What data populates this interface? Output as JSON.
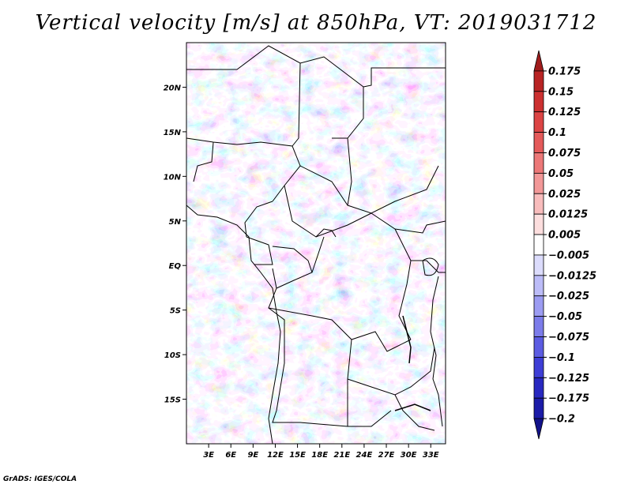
{
  "title": "Vertical velocity [m/s] at 850hPa, VT: 2019031712",
  "credit": "GrADS: IGES/COLA",
  "map": {
    "lon_range": [
      0,
      35
    ],
    "lat_range": [
      -20,
      25
    ],
    "lat_ticks": [
      {
        "value": 20,
        "label": "20N"
      },
      {
        "value": 15,
        "label": "15N"
      },
      {
        "value": 10,
        "label": "10N"
      },
      {
        "value": 5,
        "label": "5N"
      },
      {
        "value": 0,
        "label": "EQ"
      },
      {
        "value": -5,
        "label": "5S"
      },
      {
        "value": -10,
        "label": "10S"
      },
      {
        "value": -15,
        "label": "15S"
      }
    ],
    "lon_ticks": [
      {
        "value": 3,
        "label": "3E"
      },
      {
        "value": 6,
        "label": "6E"
      },
      {
        "value": 9,
        "label": "9E"
      },
      {
        "value": 12,
        "label": "12E"
      },
      {
        "value": 15,
        "label": "15E"
      },
      {
        "value": 18,
        "label": "18E"
      },
      {
        "value": 21,
        "label": "21E"
      },
      {
        "value": 24,
        "label": "24E"
      },
      {
        "value": 27,
        "label": "27E"
      },
      {
        "value": 30,
        "label": "30E"
      },
      {
        "value": 33,
        "label": "33E"
      }
    ]
  },
  "colorbar": {
    "levels": [
      "0.175",
      "0.15",
      "0.125",
      "0.1",
      "0.075",
      "0.05",
      "0.025",
      "0.0125",
      "0.005",
      "-0.005",
      "-0.0125",
      "-0.025",
      "-0.05",
      "-0.075",
      "-0.1",
      "-0.125",
      "-0.175",
      "-0.2"
    ],
    "colors": [
      "#a01c1c",
      "#b82424",
      "#cc3030",
      "#dc4444",
      "#e45a5a",
      "#ec7878",
      "#f29898",
      "#f8bcbc",
      "#fcdede",
      "#ffffff",
      "#dcdcfc",
      "#bcbcf8",
      "#9c9cf2",
      "#7c7cea",
      "#5c5ce2",
      "#3e3ed6",
      "#2828c0",
      "#1c1ca8",
      "#12128a"
    ]
  }
}
